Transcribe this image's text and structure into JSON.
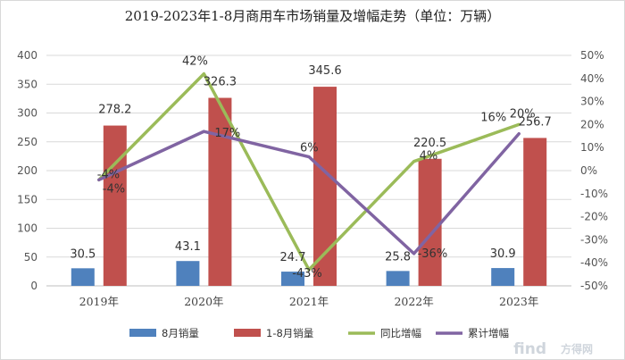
{
  "chart_data": {
    "type": "bar",
    "title": "2019-2023年1-8月商用车市场销量及增幅走势（单位：万辆）",
    "categories": [
      "2019年",
      "2020年",
      "2021年",
      "2022年",
      "2023年"
    ],
    "y_left": {
      "min": 0,
      "max": 400,
      "step": 50,
      "ticks": [
        "0",
        "50",
        "100",
        "150",
        "200",
        "250",
        "300",
        "350",
        "400"
      ]
    },
    "y_right": {
      "min": -50,
      "max": 50,
      "step": 10,
      "ticks": [
        "-50%",
        "-40%",
        "-30%",
        "-20%",
        "-10%",
        "0%",
        "10%",
        "20%",
        "30%",
        "40%",
        "50%"
      ]
    },
    "grid": true,
    "legend_position": "bottom",
    "series": [
      {
        "name": "8月销量",
        "type": "bar",
        "axis": "left",
        "color": "#4f81bd",
        "values": [
          30.5,
          43.1,
          24.7,
          25.8,
          30.9
        ],
        "labels": [
          "30.5",
          "43.1",
          "24.7",
          "25.8",
          "30.9"
        ]
      },
      {
        "name": "1-8月销量",
        "type": "bar",
        "axis": "left",
        "color": "#c0504d",
        "values": [
          278.2,
          326.3,
          345.6,
          220.5,
          256.7
        ],
        "labels": [
          "278.2",
          "326.3",
          "345.6",
          "220.5",
          "256.7"
        ]
      },
      {
        "name": "同比增幅",
        "type": "line",
        "axis": "right",
        "color": "#9bbb59",
        "values": [
          -4,
          42,
          -43,
          4,
          20
        ],
        "labels": [
          "-4%",
          "42%",
          "-43%",
          "4%",
          "20%"
        ]
      },
      {
        "name": "累计增幅",
        "type": "line",
        "axis": "right",
        "color": "#8064a2",
        "values": [
          -4,
          17,
          6,
          -36,
          16
        ],
        "labels": [
          "-4%",
          "17%",
          "6%",
          "-36%",
          "16%"
        ]
      }
    ]
  },
  "watermark": {
    "brand": "find",
    "brand_cn": "方得网"
  }
}
